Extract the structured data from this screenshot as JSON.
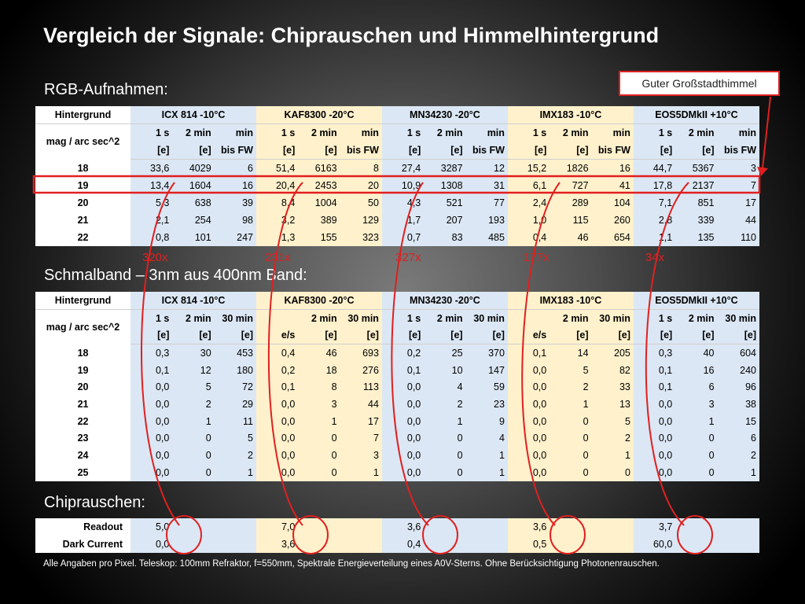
{
  "title": "Vergleich der Signale: Chiprauschen und Himmelhintergrund",
  "callout": "Guter Großstadthimmel",
  "sections": {
    "rgb": "RGB-Aufnahmen:",
    "narrowband": "Schmalband – 3nm aus 400nm Band:",
    "chip_noise": "Chiprauschen:"
  },
  "rgb_table": {
    "h_background": "Hintergrund",
    "h_mag": "mag / arc sec^2",
    "cameras": [
      "ICX 814 -10°C",
      "KAF8300 -20°C",
      "MN34230 -20°C",
      "IMX183 -10°C",
      "EOS5DMkII +10°C"
    ],
    "sub1": [
      "1 s",
      "2 min",
      "min",
      "1 s",
      "2 min",
      "min",
      "1 s",
      "2 min",
      "min",
      "1 s",
      "2 min",
      "min",
      "1 s",
      "2 min",
      "min"
    ],
    "sub2": [
      "[e]",
      "[e]",
      "bis FW",
      "[e]",
      "[e]",
      "bis FW",
      "[e]",
      "[e]",
      "bis FW",
      "[e]",
      "[e]",
      "bis FW",
      "[e]",
      "[e]",
      "bis FW"
    ],
    "rows": [
      {
        "mag": "18",
        "v": [
          "33,6",
          "4029",
          "6",
          "51,4",
          "6163",
          "8",
          "27,4",
          "3287",
          "12",
          "15,2",
          "1826",
          "16",
          "44,7",
          "5367",
          "3"
        ]
      },
      {
        "mag": "19",
        "v": [
          "13,4",
          "1604",
          "16",
          "20,4",
          "2453",
          "20",
          "10,9",
          "1308",
          "31",
          "6,1",
          "727",
          "41",
          "17,8",
          "2137",
          "7"
        ]
      },
      {
        "mag": "20",
        "v": [
          "5,3",
          "638",
          "39",
          "8,4",
          "1004",
          "50",
          "4,3",
          "521",
          "77",
          "2,4",
          "289",
          "104",
          "7,1",
          "851",
          "17"
        ]
      },
      {
        "mag": "21",
        "v": [
          "2,1",
          "254",
          "98",
          "3,2",
          "389",
          "129",
          "1,7",
          "207",
          "193",
          "1,0",
          "115",
          "260",
          "2,8",
          "339",
          "44"
        ]
      },
      {
        "mag": "22",
        "v": [
          "0,8",
          "101",
          "247",
          "1,3",
          "155",
          "323",
          "0,7",
          "83",
          "485",
          "0,4",
          "46",
          "654",
          "1,1",
          "135",
          "110"
        ]
      }
    ],
    "highlight_mag": "19"
  },
  "factors": [
    "320x",
    "231x",
    "327x",
    "177x",
    "34x"
  ],
  "nb_table": {
    "h_background": "Hintergrund",
    "h_mag": "mag / arc sec^2",
    "cameras": [
      "ICX 814 -10°C",
      "KAF8300 -20°C",
      "MN34230 -20°C",
      "IMX183 -10°C",
      "EOS5DMkII +10°C"
    ],
    "sub1": [
      "1 s",
      "2 min",
      "30 min",
      "",
      "2 min",
      "30 min",
      "1 s",
      "2 min",
      "30 min",
      "",
      "2 min",
      "30 min",
      "1 s",
      "2 min",
      "30 min"
    ],
    "sub2": [
      "[e]",
      "[e]",
      "[e]",
      "e/s",
      "[e]",
      "[e]",
      "[e]",
      "[e]",
      "[e]",
      "e/s",
      "[e]",
      "[e]",
      "[e]",
      "[e]",
      "[e]"
    ],
    "rows": [
      {
        "mag": "18",
        "v": [
          "0,3",
          "30",
          "453",
          "0,4",
          "46",
          "693",
          "0,2",
          "25",
          "370",
          "0,1",
          "14",
          "205",
          "0,3",
          "40",
          "604"
        ]
      },
      {
        "mag": "19",
        "v": [
          "0,1",
          "12",
          "180",
          "0,2",
          "18",
          "276",
          "0,1",
          "10",
          "147",
          "0,0",
          "5",
          "82",
          "0,1",
          "16",
          "240"
        ]
      },
      {
        "mag": "20",
        "v": [
          "0,0",
          "5",
          "72",
          "0,1",
          "8",
          "113",
          "0,0",
          "4",
          "59",
          "0,0",
          "2",
          "33",
          "0,1",
          "6",
          "96"
        ]
      },
      {
        "mag": "21",
        "v": [
          "0,0",
          "2",
          "29",
          "0,0",
          "3",
          "44",
          "0,0",
          "2",
          "23",
          "0,0",
          "1",
          "13",
          "0,0",
          "3",
          "38"
        ]
      },
      {
        "mag": "22",
        "v": [
          "0,0",
          "1",
          "11",
          "0,0",
          "1",
          "17",
          "0,0",
          "1",
          "9",
          "0,0",
          "0",
          "5",
          "0,0",
          "1",
          "15"
        ]
      },
      {
        "mag": "23",
        "v": [
          "0,0",
          "0",
          "5",
          "0,0",
          "0",
          "7",
          "0,0",
          "0",
          "4",
          "0,0",
          "0",
          "2",
          "0,0",
          "0",
          "6"
        ]
      },
      {
        "mag": "24",
        "v": [
          "0,0",
          "0",
          "2",
          "0,0",
          "0",
          "3",
          "0,0",
          "0",
          "1",
          "0,0",
          "0",
          "1",
          "0,0",
          "0",
          "2"
        ]
      },
      {
        "mag": "25",
        "v": [
          "0,0",
          "0",
          "1",
          "0,0",
          "0",
          "1",
          "0,0",
          "0",
          "1",
          "0,0",
          "0",
          "0",
          "0,0",
          "0",
          "1"
        ]
      }
    ]
  },
  "chip_table": {
    "rows": [
      {
        "label": "Readout",
        "values": [
          "5,0",
          "7,0",
          "3,6",
          "3,6",
          "3,7"
        ]
      },
      {
        "label": "Dark Current",
        "values": [
          "0,0",
          "3,6",
          "0,4",
          "0,5",
          "60,0"
        ]
      }
    ]
  },
  "footnote": "Alle Angaben pro Pixel. Teleskop: 100mm Refraktor, f=550mm, Spektrale Energieverteilung eines A0V-Sterns. Ohne Berücksichtigung Photonenrauschen.",
  "colors": {
    "accent_red": "#e02020",
    "cam_blue": "#dbe7f4",
    "cam_yellow": "#fff1cc"
  }
}
